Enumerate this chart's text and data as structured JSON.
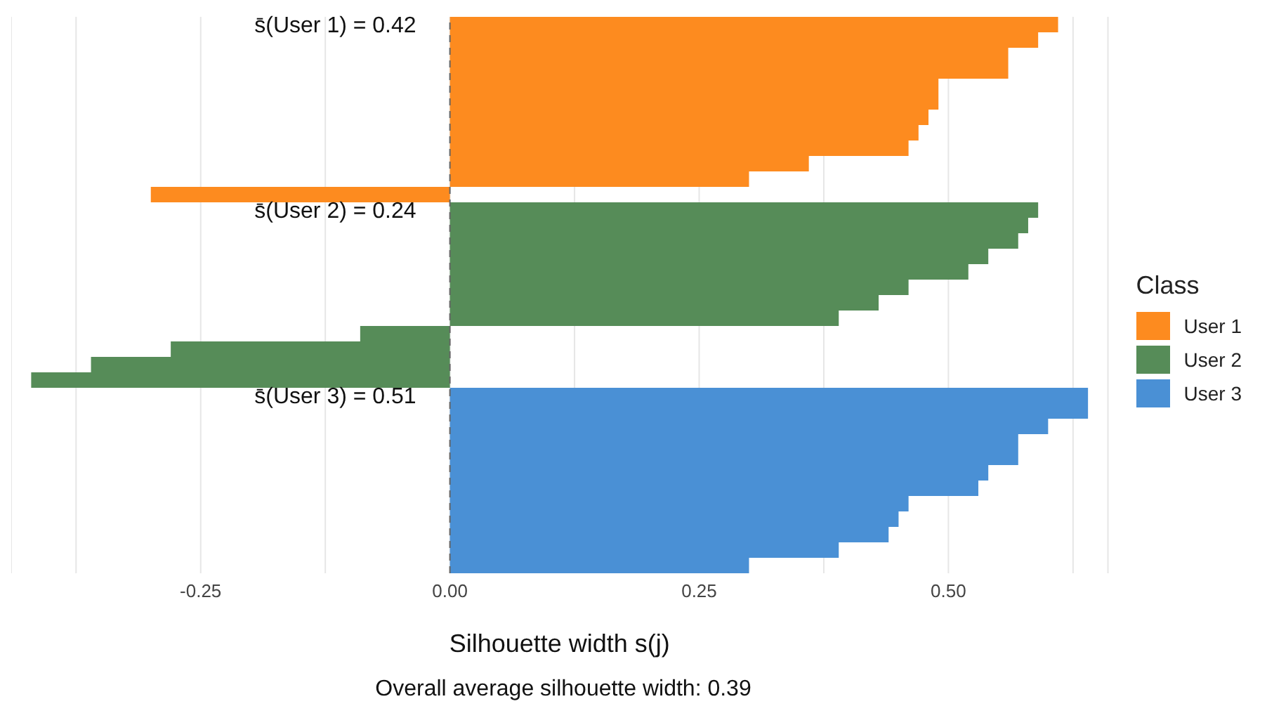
{
  "chart_data": {
    "type": "bar",
    "orientation": "horizontal",
    "stacked": true,
    "xlabel": "Silhouette width s(j)",
    "legend_title": "Class",
    "legend": "right",
    "grid": "x",
    "categories": [
      null,
      null,
      null,
      null,
      null,
      null,
      null,
      null,
      null,
      null,
      null,
      null,
      null,
      null,
      null,
      null,
      null,
      null,
      null,
      null,
      null,
      null,
      null,
      null,
      null,
      null,
      null,
      null,
      null,
      null,
      null,
      null,
      null,
      null,
      null,
      null
    ],
    "series": [
      {
        "name": "User 1",
        "color": "#fd8b1f",
        "values": [
          0.61,
          0.59,
          0.56,
          0.56,
          0.49,
          0.49,
          0.48,
          0.47,
          0.46,
          0.36,
          0.3,
          -0.3,
          null,
          null,
          null,
          null,
          null,
          null,
          null,
          null,
          null,
          null,
          null,
          null,
          null,
          null,
          null,
          null,
          null,
          null,
          null,
          null,
          null,
          null,
          null,
          null
        ]
      },
      {
        "name": "User 2",
        "color": "#568c58",
        "values": [
          null,
          null,
          null,
          null,
          null,
          null,
          null,
          null,
          null,
          null,
          null,
          null,
          0.59,
          0.58,
          0.57,
          0.54,
          0.52,
          0.46,
          0.43,
          0.39,
          -0.09,
          -0.28,
          -0.36,
          -0.42,
          null,
          null,
          null,
          null,
          null,
          null,
          null,
          null,
          null,
          null,
          null,
          null
        ]
      },
      {
        "name": "User 3",
        "color": "#4a90d5",
        "values": [
          null,
          null,
          null,
          null,
          null,
          null,
          null,
          null,
          null,
          null,
          null,
          null,
          null,
          null,
          null,
          null,
          null,
          null,
          null,
          null,
          null,
          null,
          null,
          null,
          0.64,
          0.64,
          0.6,
          0.57,
          0.57,
          0.54,
          0.53,
          0.46,
          0.45,
          0.44,
          0.39,
          0.3
        ]
      }
    ],
    "xlim": [
      -0.44,
      0.66
    ],
    "xticks": [
      {
        "value": -0.375,
        "label": null
      },
      {
        "value": -0.25,
        "label": "-0.25"
      },
      {
        "value": -0.125,
        "label": null
      },
      {
        "value": 0,
        "label": "0.00"
      },
      {
        "value": 0.125,
        "label": null
      },
      {
        "value": 0.25,
        "label": "0.25"
      },
      {
        "value": 0.375,
        "label": null
      },
      {
        "value": 0.5,
        "label": "0.50"
      },
      {
        "value": 0.625,
        "label": null
      }
    ],
    "ref_lines": [
      {
        "axis": "x",
        "value": 0,
        "line_style": "dashed",
        "color": "#666666"
      }
    ],
    "annotations": [
      "s̄(User 1) = 0.42",
      "s̄(User 2) = 0.24",
      "s̄(User 3) = 0.51",
      "Overall average silhouette width: 0.39"
    ]
  }
}
